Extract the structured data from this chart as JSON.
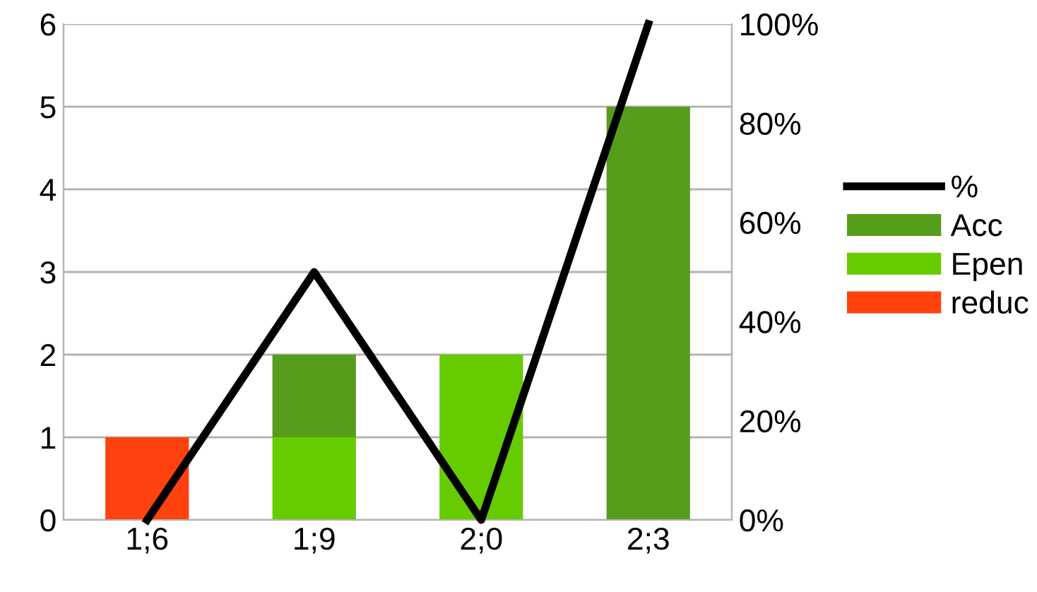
{
  "chart_data": {
    "type": "bar",
    "stacked": true,
    "categories": [
      "1;6",
      "1;9",
      "2;0",
      "2;3"
    ],
    "series": [
      {
        "name": "reduc",
        "color": "#ff420e",
        "values": [
          1,
          0,
          0,
          0
        ]
      },
      {
        "name": "Epen",
        "color": "#66cc00",
        "values": [
          0,
          1,
          2,
          0
        ]
      },
      {
        "name": "Acc",
        "color": "#579d1c",
        "values": [
          0,
          1,
          0,
          5
        ]
      },
      {
        "name": "%",
        "type": "line",
        "axis": "y2",
        "color": "#000000",
        "values": [
          0,
          50,
          0,
          100
        ]
      }
    ],
    "ylim": [
      0,
      6
    ],
    "yticks": [
      0,
      1,
      2,
      3,
      4,
      5,
      6
    ],
    "y2lim": [
      0,
      100
    ],
    "y2ticks": [
      {
        "value": 0,
        "label": "0%"
      },
      {
        "value": 20,
        "label": "20%"
      },
      {
        "value": 40,
        "label": "40%"
      },
      {
        "value": 60,
        "label": "60%"
      },
      {
        "value": 80,
        "label": "80%"
      },
      {
        "value": 100,
        "label": "100%"
      }
    ],
    "grid": "y",
    "legend": "right",
    "marker": "none",
    "line_style": "solid"
  }
}
